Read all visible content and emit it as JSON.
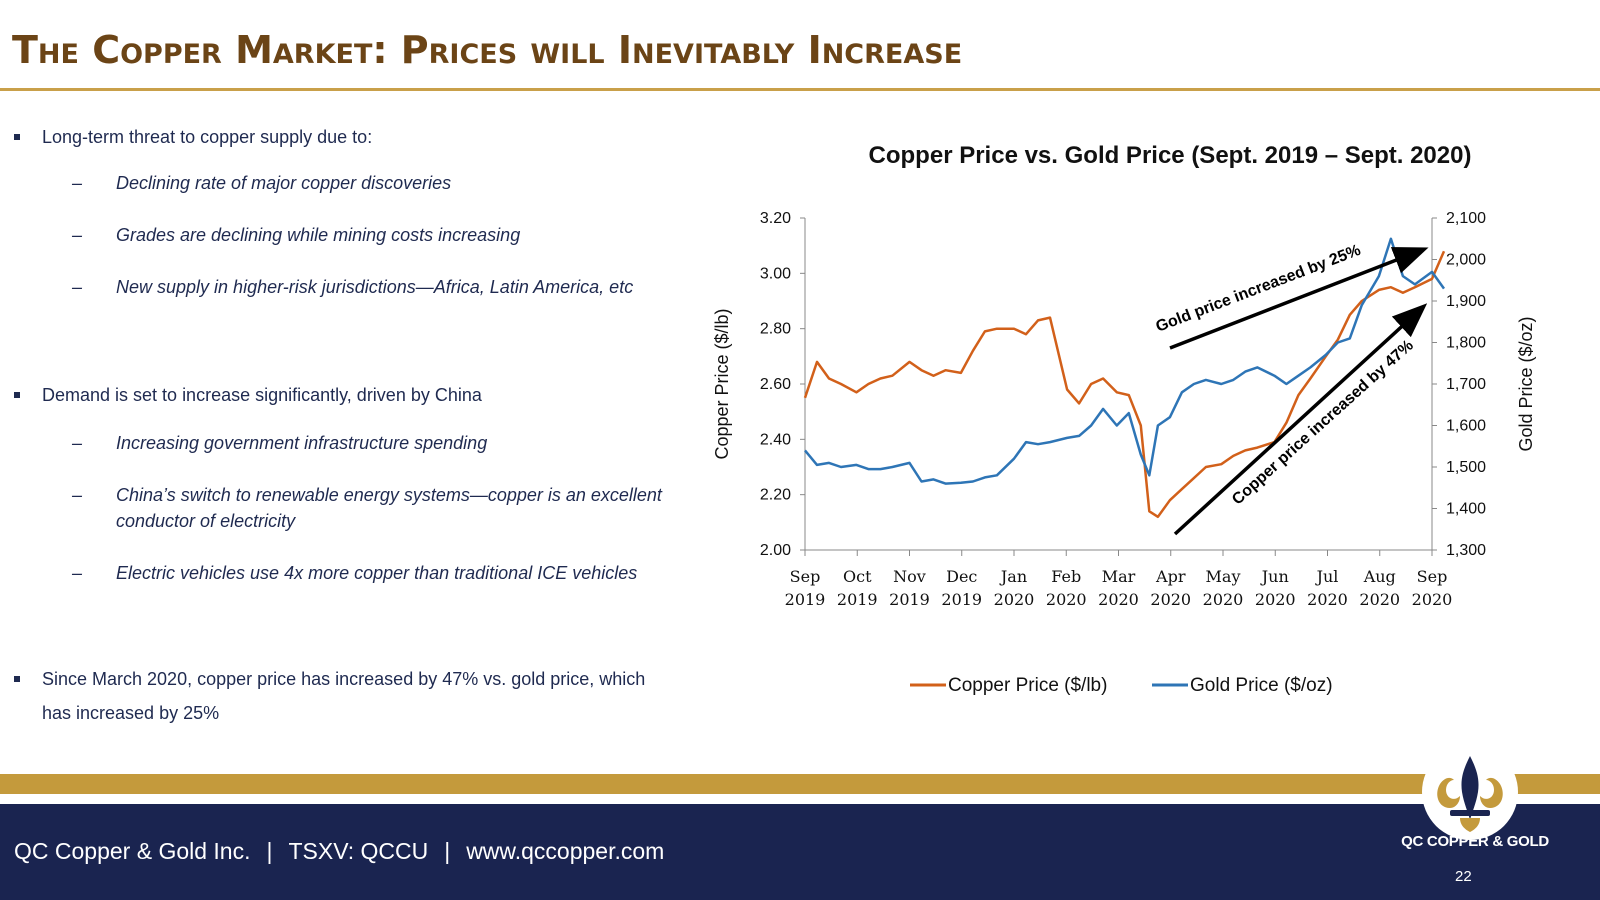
{
  "slide": {
    "title": "The Copper Market:  Prices will Inevitably Increase"
  },
  "bullets": [
    {
      "text": "Long-term threat to copper supply due to:",
      "subs": [
        "Declining rate of major copper discoveries",
        "Grades are declining while mining costs increasing",
        "New supply in higher-risk jurisdictions—Africa, Latin America, etc"
      ]
    },
    {
      "text": "Demand is set to increase significantly, driven by China",
      "subs": [
        "Increasing government infrastructure spending",
        "China’s switch to renewable energy systems—copper is an excellent conductor of electricity",
        "Electric vehicles use 4x more copper than traditional ICE vehicles"
      ]
    },
    {
      "text": "Since March 2020, copper price has increased by 47% vs. gold price, which has increased by 25%",
      "subs": []
    }
  ],
  "chart_data": {
    "type": "line",
    "title": "Copper Price vs. Gold Price (Sept. 2019 – Sept. 2020)",
    "ylabel": "Copper Price ($/lb)",
    "y2label": "Gold Price ($/oz)",
    "ylim": [
      2.0,
      3.2
    ],
    "y2lim": [
      1300,
      2100
    ],
    "yticks": [
      "2.00",
      "2.20",
      "2.40",
      "2.60",
      "2.80",
      "3.00",
      "3.20"
    ],
    "y2ticks": [
      "1,300",
      "1,400",
      "1,500",
      "1,600",
      "1,700",
      "1,800",
      "1,900",
      "2,000",
      "2,100"
    ],
    "xticks": [
      {
        "month": "Sep",
        "year": "2019"
      },
      {
        "month": "Oct",
        "year": "2019"
      },
      {
        "month": "Nov",
        "year": "2019"
      },
      {
        "month": "Dec",
        "year": "2019"
      },
      {
        "month": "Jan",
        "year": "2020"
      },
      {
        "month": "Feb",
        "year": "2020"
      },
      {
        "month": "Mar",
        "year": "2020"
      },
      {
        "month": "Apr",
        "year": "2020"
      },
      {
        "month": "May",
        "year": "2020"
      },
      {
        "month": "Jun",
        "year": "2020"
      },
      {
        "month": "Jul",
        "year": "2020"
      },
      {
        "month": "Aug",
        "year": "2020"
      },
      {
        "month": "Sep",
        "year": "2020"
      }
    ],
    "legend_position": "bottom",
    "series": [
      {
        "name": "Copper Price ($/lb)",
        "color": "#d2601a",
        "axis": "left",
        "x": [
          "2019-09-01",
          "2019-09-08",
          "2019-09-15",
          "2019-09-22",
          "2019-10-01",
          "2019-10-08",
          "2019-10-15",
          "2019-10-22",
          "2019-11-01",
          "2019-11-08",
          "2019-11-15",
          "2019-11-22",
          "2019-12-01",
          "2019-12-08",
          "2019-12-15",
          "2019-12-22",
          "2020-01-01",
          "2020-01-08",
          "2020-01-15",
          "2020-01-22",
          "2020-02-01",
          "2020-02-08",
          "2020-02-15",
          "2020-02-22",
          "2020-03-01",
          "2020-03-08",
          "2020-03-15",
          "2020-03-20",
          "2020-03-25",
          "2020-04-01",
          "2020-04-08",
          "2020-04-15",
          "2020-04-22",
          "2020-05-01",
          "2020-05-08",
          "2020-05-15",
          "2020-05-22",
          "2020-06-01",
          "2020-06-08",
          "2020-06-15",
          "2020-06-22",
          "2020-07-01",
          "2020-07-08",
          "2020-07-15",
          "2020-07-22",
          "2020-08-01",
          "2020-08-08",
          "2020-08-15",
          "2020-08-22",
          "2020-09-01",
          "2020-09-08"
        ],
        "values": [
          2.55,
          2.68,
          2.62,
          2.6,
          2.57,
          2.6,
          2.62,
          2.63,
          2.68,
          2.65,
          2.63,
          2.65,
          2.64,
          2.72,
          2.79,
          2.8,
          2.8,
          2.78,
          2.83,
          2.84,
          2.58,
          2.53,
          2.6,
          2.62,
          2.57,
          2.56,
          2.45,
          2.14,
          2.12,
          2.18,
          2.22,
          2.26,
          2.3,
          2.31,
          2.34,
          2.36,
          2.37,
          2.39,
          2.46,
          2.56,
          2.62,
          2.7,
          2.76,
          2.85,
          2.9,
          2.94,
          2.95,
          2.93,
          2.95,
          2.98,
          3.08
        ]
      },
      {
        "name": "Gold Price ($/oz)",
        "color": "#2e75b6",
        "axis": "right",
        "x": [
          "2019-09-01",
          "2019-09-08",
          "2019-09-15",
          "2019-09-22",
          "2019-10-01",
          "2019-10-08",
          "2019-10-15",
          "2019-10-22",
          "2019-11-01",
          "2019-11-08",
          "2019-11-15",
          "2019-11-22",
          "2019-12-01",
          "2019-12-08",
          "2019-12-15",
          "2019-12-22",
          "2020-01-01",
          "2020-01-08",
          "2020-01-15",
          "2020-01-22",
          "2020-02-01",
          "2020-02-08",
          "2020-02-15",
          "2020-02-22",
          "2020-03-01",
          "2020-03-08",
          "2020-03-15",
          "2020-03-20",
          "2020-03-25",
          "2020-04-01",
          "2020-04-08",
          "2020-04-15",
          "2020-04-22",
          "2020-05-01",
          "2020-05-08",
          "2020-05-15",
          "2020-05-22",
          "2020-06-01",
          "2020-06-08",
          "2020-06-15",
          "2020-06-22",
          "2020-07-01",
          "2020-07-08",
          "2020-07-15",
          "2020-07-22",
          "2020-08-01",
          "2020-08-08",
          "2020-08-15",
          "2020-08-22",
          "2020-09-01",
          "2020-09-08"
        ],
        "values": [
          1540,
          1505,
          1510,
          1500,
          1505,
          1495,
          1495,
          1500,
          1510,
          1465,
          1470,
          1460,
          1462,
          1465,
          1475,
          1480,
          1520,
          1560,
          1555,
          1560,
          1570,
          1575,
          1600,
          1640,
          1600,
          1630,
          1530,
          1480,
          1600,
          1620,
          1680,
          1700,
          1710,
          1700,
          1710,
          1730,
          1740,
          1720,
          1700,
          1720,
          1740,
          1770,
          1800,
          1810,
          1890,
          1960,
          2050,
          1960,
          1940,
          1970,
          1930
        ]
      }
    ],
    "annotations": [
      "Gold price increased by 25%",
      "Copper price increased by 47%"
    ]
  },
  "footer": {
    "company": "QC Copper & Gold Inc.",
    "sep": "|",
    "ticker": "TSXV: QCCU",
    "website": "www.qccopper.com",
    "logo_text": "QC COPPER & GOLD",
    "page_number": "22"
  },
  "colors": {
    "title": "#6b4416",
    "accent_gold": "#c49a3c",
    "navy": "#1a2450",
    "copper_line": "#d2601a",
    "gold_line": "#2e75b6"
  }
}
